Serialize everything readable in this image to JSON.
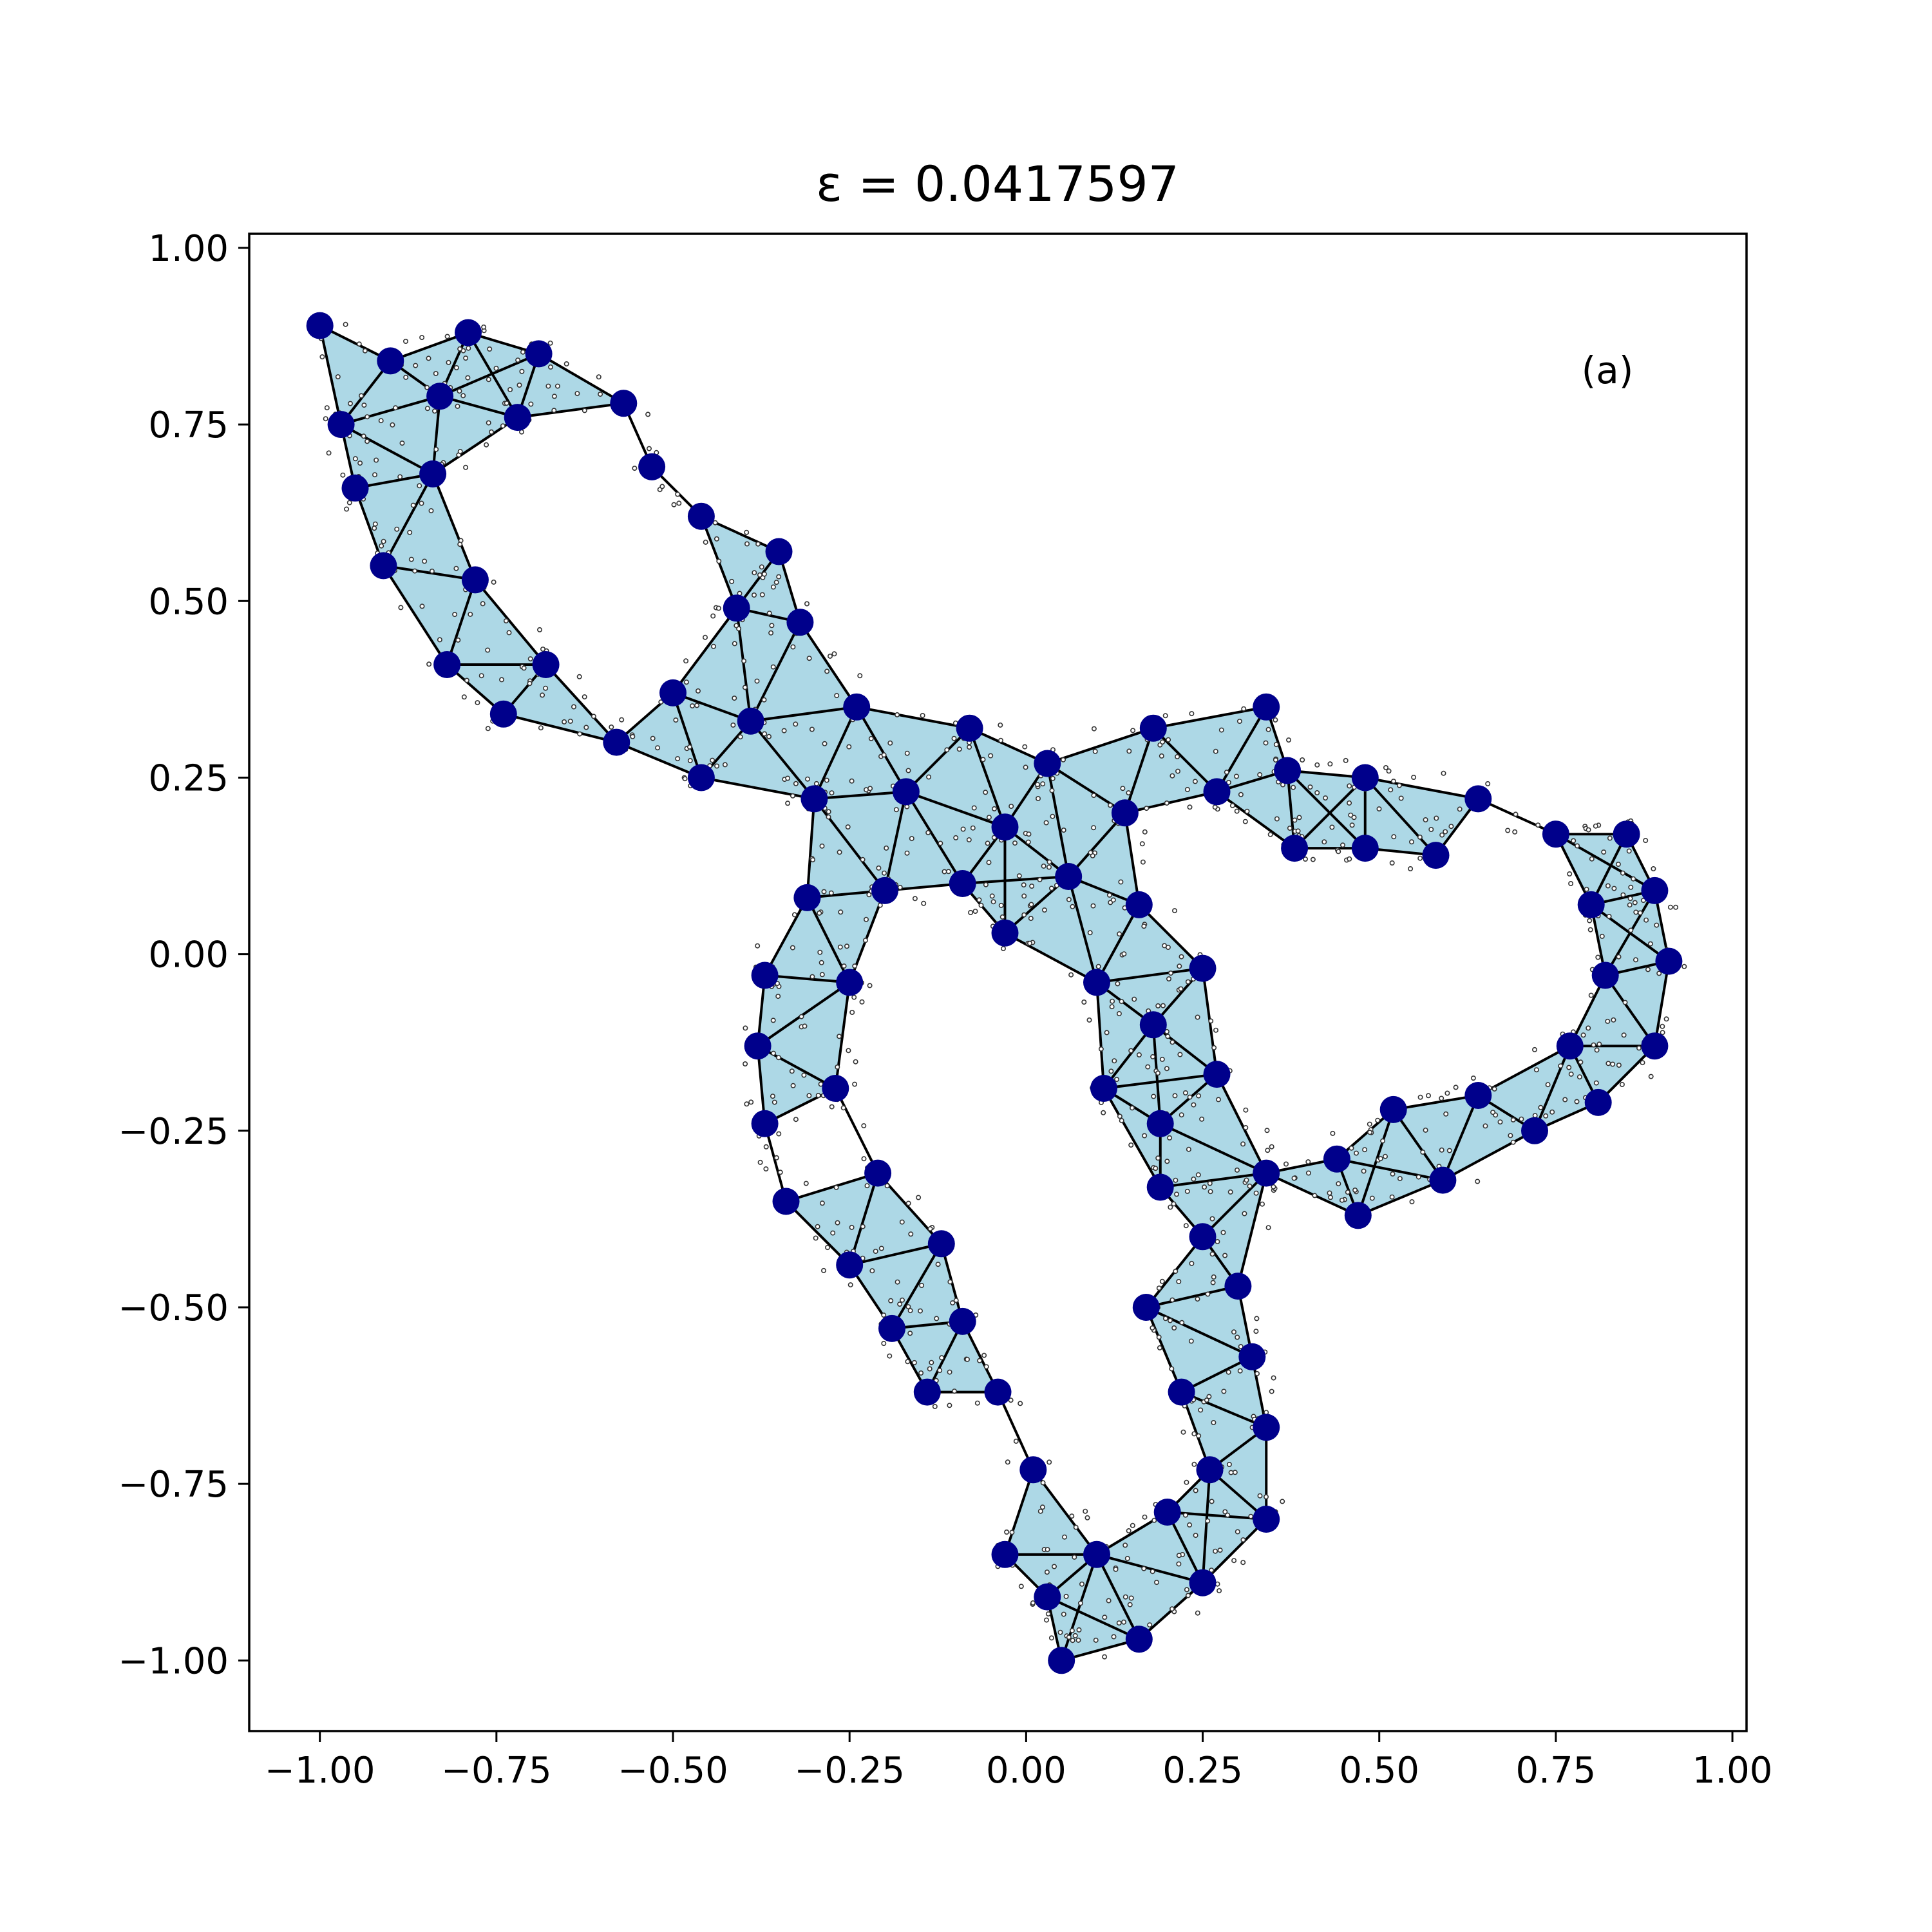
{
  "chart_data": {
    "type": "scatter",
    "title": "ε = 0.0417597",
    "annotation": "(a)",
    "xlim": [
      -1.1,
      1.02
    ],
    "ylim": [
      -1.1,
      1.02
    ],
    "x_ticks": [
      -1.0,
      -0.75,
      -0.5,
      -0.25,
      0.0,
      0.25,
      0.5,
      0.75,
      1.0
    ],
    "x_tick_labels": [
      "−1.00",
      "−0.75",
      "−0.50",
      "−0.25",
      "0.00",
      "0.25",
      "0.50",
      "0.75",
      "1.00"
    ],
    "y_ticks": [
      1.0,
      0.75,
      0.5,
      0.25,
      0.0,
      -0.25,
      -0.5,
      -0.75,
      -1.0
    ],
    "y_tick_labels": [
      "1.00",
      "0.75",
      "0.50",
      "0.25",
      "0.00",
      "−0.25",
      "−0.50",
      "−0.75",
      "−1.00"
    ],
    "grid": false,
    "colors": {
      "landmark": "#00008b",
      "fill": "#add8e6",
      "edge": "#000000",
      "sample": "#333333"
    },
    "landmarks": [
      [
        -1.0,
        0.89
      ],
      [
        -0.9,
        0.84
      ],
      [
        -0.79,
        0.88
      ],
      [
        -0.69,
        0.85
      ],
      [
        -0.57,
        0.78
      ],
      [
        -0.72,
        0.76
      ],
      [
        -0.83,
        0.79
      ],
      [
        -0.97,
        0.75
      ],
      [
        -0.95,
        0.66
      ],
      [
        -0.84,
        0.68
      ],
      [
        -0.91,
        0.55
      ],
      [
        -0.78,
        0.53
      ],
      [
        -0.82,
        0.41
      ],
      [
        -0.74,
        0.34
      ],
      [
        -0.68,
        0.41
      ],
      [
        -0.58,
        0.3
      ],
      [
        -0.5,
        0.37
      ],
      [
        -0.46,
        0.25
      ],
      [
        -0.53,
        0.69
      ],
      [
        -0.46,
        0.62
      ],
      [
        -0.35,
        0.57
      ],
      [
        -0.41,
        0.49
      ],
      [
        -0.32,
        0.47
      ],
      [
        -0.39,
        0.33
      ],
      [
        -0.24,
        0.35
      ],
      [
        -0.3,
        0.22
      ],
      [
        -0.17,
        0.23
      ],
      [
        -0.08,
        0.32
      ],
      [
        0.03,
        0.27
      ],
      [
        -0.03,
        0.18
      ],
      [
        0.18,
        0.32
      ],
      [
        0.34,
        0.35
      ],
      [
        0.27,
        0.23
      ],
      [
        0.14,
        0.2
      ],
      [
        0.06,
        0.11
      ],
      [
        -0.09,
        0.1
      ],
      [
        -0.03,
        0.03
      ],
      [
        -0.2,
        0.09
      ],
      [
        -0.31,
        0.08
      ],
      [
        -0.37,
        -0.03
      ],
      [
        -0.25,
        -0.04
      ],
      [
        -0.38,
        -0.13
      ],
      [
        -0.27,
        -0.19
      ],
      [
        -0.37,
        -0.24
      ],
      [
        -0.34,
        -0.35
      ],
      [
        -0.21,
        -0.31
      ],
      [
        -0.12,
        -0.41
      ],
      [
        -0.25,
        -0.44
      ],
      [
        -0.19,
        -0.53
      ],
      [
        -0.09,
        -0.52
      ],
      [
        -0.14,
        -0.62
      ],
      [
        -0.04,
        -0.62
      ],
      [
        0.01,
        -0.73
      ],
      [
        -0.03,
        -0.85
      ],
      [
        0.03,
        -0.91
      ],
      [
        0.05,
        -1.0
      ],
      [
        0.1,
        -0.85
      ],
      [
        0.16,
        -0.97
      ],
      [
        0.2,
        -0.79
      ],
      [
        0.25,
        -0.89
      ],
      [
        0.26,
        -0.73
      ],
      [
        0.34,
        -0.8
      ],
      [
        0.34,
        -0.67
      ],
      [
        0.32,
        -0.57
      ],
      [
        0.22,
        -0.62
      ],
      [
        0.3,
        -0.47
      ],
      [
        0.17,
        -0.5
      ],
      [
        0.25,
        -0.4
      ],
      [
        0.19,
        -0.33
      ],
      [
        0.19,
        -0.24
      ],
      [
        0.34,
        -0.31
      ],
      [
        0.27,
        -0.17
      ],
      [
        0.11,
        -0.19
      ],
      [
        0.18,
        -0.1
      ],
      [
        0.1,
        -0.04
      ],
      [
        0.25,
        -0.02
      ],
      [
        0.16,
        0.07
      ],
      [
        0.37,
        0.26
      ],
      [
        0.38,
        0.15
      ],
      [
        0.48,
        0.25
      ],
      [
        0.48,
        0.15
      ],
      [
        0.58,
        0.14
      ],
      [
        0.64,
        0.22
      ],
      [
        0.75,
        0.17
      ],
      [
        0.85,
        0.17
      ],
      [
        0.8,
        0.07
      ],
      [
        0.89,
        0.09
      ],
      [
        0.91,
        -0.01
      ],
      [
        0.82,
        -0.03
      ],
      [
        0.89,
        -0.13
      ],
      [
        0.77,
        -0.13
      ],
      [
        0.81,
        -0.21
      ],
      [
        0.72,
        -0.25
      ],
      [
        0.64,
        -0.2
      ],
      [
        0.59,
        -0.32
      ],
      [
        0.52,
        -0.22
      ],
      [
        0.47,
        -0.37
      ],
      [
        0.44,
        -0.29
      ]
    ]
  }
}
